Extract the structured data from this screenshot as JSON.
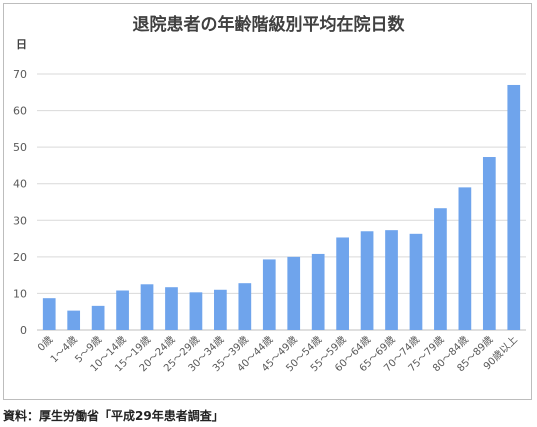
{
  "chart_data": {
    "type": "bar",
    "title": "退院患者の年齢階級別平均在院日数",
    "ylabel": "日",
    "xlabel": "",
    "ylim": [
      0,
      70
    ],
    "yticks": [
      0,
      10,
      20,
      30,
      40,
      50,
      60,
      70
    ],
    "grid": true,
    "legend": "none",
    "bar_color": "#6fa4ec",
    "categories": [
      "0歳",
      "1～4歳",
      "5～9歳",
      "10～14歳",
      "15～19歳",
      "20～24歳",
      "25～29歳",
      "30～34歳",
      "35～39歳",
      "40～44歳",
      "45～49歳",
      "50～54歳",
      "55～59歳",
      "60～64歳",
      "65～69歳",
      "70～74歳",
      "75～79歳",
      "80～84歳",
      "85～89歳",
      "90歳以上"
    ],
    "values": [
      8.7,
      5.3,
      6.6,
      10.8,
      12.5,
      11.7,
      10.3,
      11.0,
      12.8,
      19.3,
      20.0,
      20.8,
      25.3,
      27.0,
      27.3,
      26.3,
      33.3,
      39.0,
      47.3,
      67.0
    ]
  },
  "source": "資料：厚生労働省「平成29年患者調査」"
}
